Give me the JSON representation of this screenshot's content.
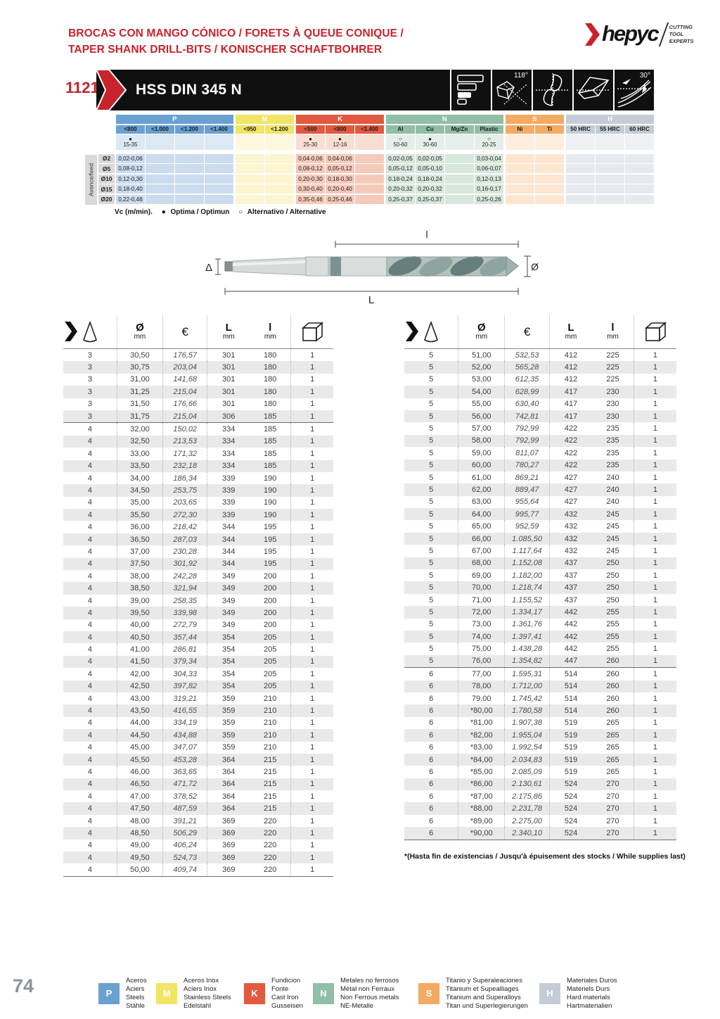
{
  "page": {
    "number": "74",
    "accent_red": "#c8232c"
  },
  "header": {
    "title_line1": "BROCAS CON MANGO CÓNICO / FORETS À QUEUE CONIQUE /",
    "title_line2": "TAPER SHANK DRILL-BITS / KONISCHER SCHAFTBOHRER",
    "logo": {
      "brand": "hepyc",
      "tagline": [
        "CUTTING",
        "TOOL",
        "EXPERTS"
      ]
    }
  },
  "product_bar": {
    "code": "1121",
    "name": "HSS DIN 345 N",
    "point_angle": "118°",
    "helix_angle": "30°"
  },
  "cutting_table": {
    "axis_label": "Avance/feed",
    "row_labels": [
      "Ø2",
      "Ø5",
      "Ø10",
      "Ø15",
      "Ø20"
    ],
    "groups": [
      {
        "key": "P",
        "color": "#69a1d3",
        "cell_color": "#cbdcee",
        "vc_bg": "#dce8f4",
        "subs": [
          "<800",
          "<1.000",
          "<1.200",
          "<1.400"
        ],
        "dots": [
          "opt",
          "",
          "",
          ""
        ],
        "vc": [
          "15-35",
          "",
          "",
          ""
        ]
      },
      {
        "key": "M",
        "color": "#f1e565",
        "cell_color": "#fbf5d0",
        "vc_bg": "#fcf8dd",
        "subs": [
          "<950",
          "<1.200"
        ],
        "dots": [
          "",
          ""
        ],
        "vc": [
          "",
          ""
        ]
      },
      {
        "key": "K",
        "color": "#e2593f",
        "cell_color": "#f6cabb",
        "vc_bg": "#f9ded4",
        "subs": [
          "<500",
          "<800",
          "<1.400"
        ],
        "dots": [
          "opt",
          "opt",
          ""
        ],
        "vc": [
          "25-30",
          "12-16",
          ""
        ]
      },
      {
        "key": "N",
        "color": "#90bea7",
        "cell_color": "#d7e7dc",
        "vc_bg": "#e5efe9",
        "subs": [
          "Al",
          "Cu",
          "Mg/Zn",
          "Plastic"
        ],
        "dots": [
          "alt",
          "opt",
          "",
          "alt"
        ],
        "vc": [
          "50-60",
          "30-60",
          "",
          "20-25"
        ]
      },
      {
        "key": "S",
        "color": "#f3ab63",
        "cell_color": "#fce6cf",
        "vc_bg": "#fdeede",
        "subs": [
          "Ni",
          "Ti"
        ],
        "dots": [
          "",
          ""
        ],
        "vc": [
          "",
          ""
        ]
      },
      {
        "key": "H",
        "color": "#c4cdd5",
        "cell_color": "#e6eaee",
        "vc_bg": "#eef1f4",
        "subs": [
          "50 HRC",
          "55 HRC",
          "60 HRC"
        ],
        "dots": [
          "",
          "",
          ""
        ],
        "vc": [
          "",
          "",
          ""
        ]
      }
    ],
    "rows": [
      {
        "cells": [
          [
            "0,02-0,06",
            "",
            "",
            ""
          ],
          [
            "",
            ""
          ],
          [
            "0,04-0,06",
            "0,04-0,06",
            ""
          ],
          [
            "0,02-0,05",
            "0,02-0,05",
            "",
            "0,03-0,04"
          ],
          [
            "",
            ""
          ],
          [
            "",
            "",
            ""
          ]
        ]
      },
      {
        "cells": [
          [
            "0,08-0,12",
            "",
            "",
            ""
          ],
          [
            "",
            ""
          ],
          [
            "0,08-0,12",
            "0,05-0,12",
            ""
          ],
          [
            "0,05-0,12",
            "0,05-0,10",
            "",
            "0,06-0,07"
          ],
          [
            "",
            ""
          ],
          [
            "",
            "",
            ""
          ]
        ]
      },
      {
        "cells": [
          [
            "0,12-0,30",
            "",
            "",
            ""
          ],
          [
            "",
            ""
          ],
          [
            "0,20-0,30",
            "0,18-0,30",
            ""
          ],
          [
            "0,18-0,24",
            "0,18-0,24",
            "",
            "0,12-0,13"
          ],
          [
            "",
            ""
          ],
          [
            "",
            "",
            ""
          ]
        ]
      },
      {
        "cells": [
          [
            "0,18-0,40",
            "",
            "",
            ""
          ],
          [
            "",
            ""
          ],
          [
            "0,30-0,40",
            "0,20-0,40",
            ""
          ],
          [
            "0,20-0,32",
            "0,20-0,32",
            "",
            "0,16-0,17"
          ],
          [
            "",
            ""
          ],
          [
            "",
            "",
            ""
          ]
        ]
      },
      {
        "cells": [
          [
            "0,22-0,46",
            "",
            "",
            ""
          ],
          [
            "",
            ""
          ],
          [
            "0,35-0,46",
            "0,25-0,46",
            ""
          ],
          [
            "0,25-0,37",
            "0,25-0,37",
            "",
            "0,25-0,26"
          ],
          [
            "",
            ""
          ],
          [
            "",
            "",
            ""
          ]
        ]
      }
    ],
    "note": {
      "prefix": "Vc (m/min).",
      "optima_dot": "●",
      "optima": "Optima / Optimun",
      "alt_dot": "○",
      "alternative": "Alternativo / Alternative"
    }
  },
  "diagram": {
    "labels": {
      "taper": "Δ",
      "flute_length": "l",
      "overall_length": "L",
      "diameter": "Ø"
    }
  },
  "catalog": {
    "columns": {
      "diameter": "Ø",
      "diameter_unit": "mm",
      "price": "€",
      "overall": "L",
      "overall_unit": "mm",
      "flute": "l",
      "flute_unit": "mm"
    },
    "left_rows": [
      [
        "3",
        "30,50",
        "176,57",
        "301",
        "180",
        "1"
      ],
      [
        "3",
        "30,75",
        "203,04",
        "301",
        "180",
        "1"
      ],
      [
        "3",
        "31,00",
        "141,68",
        "301",
        "180",
        "1"
      ],
      [
        "3",
        "31,25",
        "215,04",
        "301",
        "180",
        "1"
      ],
      [
        "3",
        "31,50",
        "176,66",
        "301",
        "180",
        "1"
      ],
      [
        "3",
        "31,75",
        "215,04",
        "306",
        "185",
        "1"
      ],
      [
        "4",
        "32,00",
        "150,02",
        "334",
        "185",
        "1"
      ],
      [
        "4",
        "32,50",
        "213,53",
        "334",
        "185",
        "1"
      ],
      [
        "4",
        "33,00",
        "171,32",
        "334",
        "185",
        "1"
      ],
      [
        "4",
        "33,50",
        "232,18",
        "334",
        "185",
        "1"
      ],
      [
        "4",
        "34,00",
        "186,34",
        "339",
        "190",
        "1"
      ],
      [
        "4",
        "34,50",
        "253,75",
        "339",
        "190",
        "1"
      ],
      [
        "4",
        "35,00",
        "203,65",
        "339",
        "190",
        "1"
      ],
      [
        "4",
        "35,50",
        "272,30",
        "339",
        "190",
        "1"
      ],
      [
        "4",
        "36,00",
        "218,42",
        "344",
        "195",
        "1"
      ],
      [
        "4",
        "36,50",
        "287,03",
        "344",
        "195",
        "1"
      ],
      [
        "4",
        "37,00",
        "230,28",
        "344",
        "195",
        "1"
      ],
      [
        "4",
        "37,50",
        "301,92",
        "344",
        "195",
        "1"
      ],
      [
        "4",
        "38,00",
        "242,28",
        "349",
        "200",
        "1"
      ],
      [
        "4",
        "38,50",
        "321,94",
        "349",
        "200",
        "1"
      ],
      [
        "4",
        "39,00",
        "258,35",
        "349",
        "200",
        "1"
      ],
      [
        "4",
        "39,50",
        "339,98",
        "349",
        "200",
        "1"
      ],
      [
        "4",
        "40,00",
        "272,79",
        "349",
        "200",
        "1"
      ],
      [
        "4",
        "40,50",
        "357,44",
        "354",
        "205",
        "1"
      ],
      [
        "4",
        "41,00",
        "286,81",
        "354",
        "205",
        "1"
      ],
      [
        "4",
        "41,50",
        "379,34",
        "354",
        "205",
        "1"
      ],
      [
        "4",
        "42,00",
        "304,33",
        "354",
        "205",
        "1"
      ],
      [
        "4",
        "42,50",
        "397,82",
        "354",
        "205",
        "1"
      ],
      [
        "4",
        "43,00",
        "319,21",
        "359",
        "210",
        "1"
      ],
      [
        "4",
        "43,50",
        "416,55",
        "359",
        "210",
        "1"
      ],
      [
        "4",
        "44,00",
        "334,19",
        "359",
        "210",
        "1"
      ],
      [
        "4",
        "44,50",
        "434,88",
        "359",
        "210",
        "1"
      ],
      [
        "4",
        "45,00",
        "347,07",
        "359",
        "210",
        "1"
      ],
      [
        "4",
        "45,50",
        "453,28",
        "364",
        "215",
        "1"
      ],
      [
        "4",
        "46,00",
        "363,65",
        "364",
        "215",
        "1"
      ],
      [
        "4",
        "46,50",
        "471,72",
        "364",
        "215",
        "1"
      ],
      [
        "4",
        "47,00",
        "378,52",
        "364",
        "215",
        "1"
      ],
      [
        "4",
        "47,50",
        "487,59",
        "364",
        "215",
        "1"
      ],
      [
        "4",
        "48,00",
        "391,21",
        "369",
        "220",
        "1"
      ],
      [
        "4",
        "48,50",
        "506,29",
        "369",
        "220",
        "1"
      ],
      [
        "4",
        "49,00",
        "406,24",
        "369",
        "220",
        "1"
      ],
      [
        "4",
        "49,50",
        "524,73",
        "369",
        "220",
        "1"
      ],
      [
        "4",
        "50,00",
        "409,74",
        "369",
        "220",
        "1"
      ]
    ],
    "right_rows": [
      [
        "5",
        "51,00",
        "532,53",
        "412",
        "225",
        "1"
      ],
      [
        "5",
        "52,00",
        "565,28",
        "412",
        "225",
        "1"
      ],
      [
        "5",
        "53,00",
        "612,35",
        "412",
        "225",
        "1"
      ],
      [
        "5",
        "54,00",
        "628,99",
        "417",
        "230",
        "1"
      ],
      [
        "5",
        "55,00",
        "630,40",
        "417",
        "230",
        "1"
      ],
      [
        "5",
        "56,00",
        "742,81",
        "417",
        "230",
        "1"
      ],
      [
        "5",
        "57,00",
        "792,99",
        "422",
        "235",
        "1"
      ],
      [
        "5",
        "58,00",
        "792,99",
        "422",
        "235",
        "1"
      ],
      [
        "5",
        "59,00",
        "811,07",
        "422",
        "235",
        "1"
      ],
      [
        "5",
        "60,00",
        "780,27",
        "422",
        "235",
        "1"
      ],
      [
        "5",
        "61,00",
        "869,21",
        "427",
        "240",
        "1"
      ],
      [
        "5",
        "62,00",
        "889,47",
        "427",
        "240",
        "1"
      ],
      [
        "5",
        "63,00",
        "955,64",
        "427",
        "240",
        "1"
      ],
      [
        "5",
        "64,00",
        "995,77",
        "432",
        "245",
        "1"
      ],
      [
        "5",
        "65,00",
        "952,59",
        "432",
        "245",
        "1"
      ],
      [
        "5",
        "66,00",
        "1.085,50",
        "432",
        "245",
        "1"
      ],
      [
        "5",
        "67,00",
        "1.117,64",
        "432",
        "245",
        "1"
      ],
      [
        "5",
        "68,00",
        "1.152,08",
        "437",
        "250",
        "1"
      ],
      [
        "5",
        "69,00",
        "1.182,00",
        "437",
        "250",
        "1"
      ],
      [
        "5",
        "70,00",
        "1.218,74",
        "437",
        "250",
        "1"
      ],
      [
        "5",
        "71,00",
        "1.155,52",
        "437",
        "250",
        "1"
      ],
      [
        "5",
        "72,00",
        "1.334,17",
        "442",
        "255",
        "1"
      ],
      [
        "5",
        "73,00",
        "1.361,76",
        "442",
        "255",
        "1"
      ],
      [
        "5",
        "74,00",
        "1.397,41",
        "442",
        "255",
        "1"
      ],
      [
        "5",
        "75,00",
        "1.438,28",
        "442",
        "255",
        "1"
      ],
      [
        "5",
        "76,00",
        "1.354,82",
        "447",
        "260",
        "1"
      ],
      [
        "6",
        "77,00",
        "1.595,31",
        "514",
        "260",
        "1"
      ],
      [
        "6",
        "78,00",
        "1.712,00",
        "514",
        "260",
        "1"
      ],
      [
        "6",
        "79,00",
        "1.745,42",
        "514",
        "260",
        "1"
      ],
      [
        "6",
        "*80,00",
        "1.780,58",
        "514",
        "260",
        "1"
      ],
      [
        "6",
        "*81,00",
        "1.907,38",
        "519",
        "265",
        "1"
      ],
      [
        "6",
        "*82,00",
        "1.955,04",
        "519",
        "265",
        "1"
      ],
      [
        "6",
        "*83,00",
        "1.992,54",
        "519",
        "265",
        "1"
      ],
      [
        "6",
        "*84,00",
        "2.034,83",
        "519",
        "265",
        "1"
      ],
      [
        "6",
        "*85,00",
        "2.085,09",
        "519",
        "265",
        "1"
      ],
      [
        "6",
        "*86,00",
        "2.130,61",
        "524",
        "270",
        "1"
      ],
      [
        "6",
        "*87,00",
        "2.175,86",
        "524",
        "270",
        "1"
      ],
      [
        "6",
        "*88,00",
        "2.231,78",
        "524",
        "270",
        "1"
      ],
      [
        "6",
        "*89,00",
        "2.275,00",
        "524",
        "270",
        "1"
      ],
      [
        "6",
        "*90,00",
        "2.340,10",
        "524",
        "270",
        "1"
      ]
    ],
    "footnote_bold": "*(Hasta fin de existencias / ",
    "footnote_rest": "Jusqu'à épuisement des stocks / While supplies last)"
  },
  "legend": [
    {
      "key": "P",
      "color": "#69a1d3",
      "lines": [
        "Aceros",
        "Aciers",
        "Steels",
        "Stähle"
      ]
    },
    {
      "key": "M",
      "color": "#f1e565",
      "lines": [
        "Aceros Inox",
        "Aciers Inox",
        "Stainless Steels",
        "Edelstahl"
      ]
    },
    {
      "key": "K",
      "color": "#e2593f",
      "lines": [
        "Fundicion",
        "Fonte",
        "Cast Iron",
        "Gusseisen"
      ]
    },
    {
      "key": "N",
      "color": "#90bea7",
      "lines": [
        "Metales no ferrosos",
        "Métal non Ferraux",
        "Non Ferrous metals",
        "NE-Metalle"
      ]
    },
    {
      "key": "S",
      "color": "#f3ab63",
      "lines": [
        "Titanio y Superaleaciones",
        "Titanium et Supealliages",
        "Titanium and Superalloys",
        "Titan und Superlegierungen"
      ]
    },
    {
      "key": "H",
      "color": "#c4cdd5",
      "lines": [
        "Materiales Duros",
        "Materiels Durs",
        "Hard materials",
        "Hartmaterialien"
      ]
    }
  ]
}
